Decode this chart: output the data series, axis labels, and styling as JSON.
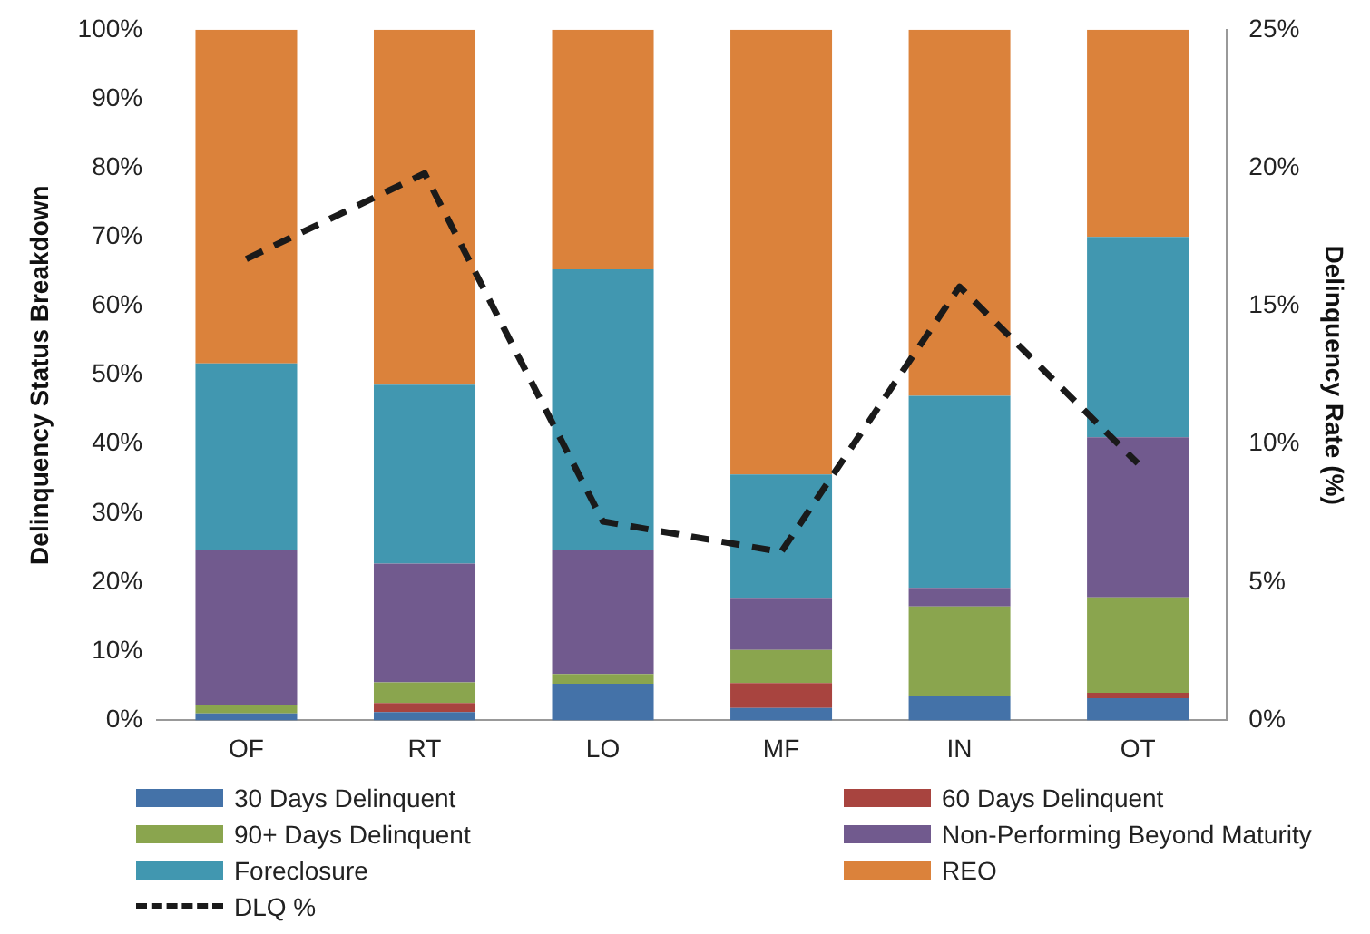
{
  "chart_data": {
    "type": "bar",
    "stacked": true,
    "ylabel": "Delinquency Status Breakdown",
    "y2label": "Delinquency Rate (%)",
    "categories": [
      "OF",
      "RT",
      "LO",
      "MF",
      "IN",
      "OT"
    ],
    "series": [
      {
        "name": "30 Days Delinquent",
        "color": "#4472a8",
        "values": [
          1.0,
          1.2,
          5.3,
          1.8,
          3.6,
          3.2
        ]
      },
      {
        "name": "60 Days Delinquent",
        "color": "#a8443f",
        "values": [
          0,
          1.3,
          0,
          3.6,
          0,
          0.8
        ]
      },
      {
        "name": "90+ Days Delinquent",
        "color": "#8aa54e",
        "values": [
          1.2,
          3.0,
          1.4,
          4.8,
          12.9,
          13.8
        ]
      },
      {
        "name": "Non-Performing Beyond Maturity",
        "color": "#715a8e",
        "values": [
          22.5,
          17.2,
          18.0,
          7.4,
          2.7,
          23.2
        ]
      },
      {
        "name": "Foreclosure",
        "color": "#4197b0",
        "values": [
          27.0,
          25.9,
          40.6,
          18.0,
          27.8,
          29.0
        ]
      },
      {
        "name": "REO",
        "color": "#db823b",
        "values": [
          48.3,
          51.4,
          34.7,
          64.4,
          53.0,
          30.0
        ]
      },
      {
        "name": "DLQ %",
        "type": "line",
        "axis": "y2",
        "color": "#1a1a1a",
        "line_style": "dashed",
        "marker": "none",
        "values": [
          16.7,
          19.8,
          7.2,
          6.1,
          15.7,
          9.3
        ]
      }
    ],
    "ylim": [
      0,
      100
    ],
    "yticks": [
      {
        "value": 0,
        "label": "0%"
      },
      {
        "value": 10,
        "label": "10%"
      },
      {
        "value": 20,
        "label": "20%"
      },
      {
        "value": 30,
        "label": "30%"
      },
      {
        "value": 40,
        "label": "40%"
      },
      {
        "value": 50,
        "label": "50%"
      },
      {
        "value": 60,
        "label": "60%"
      },
      {
        "value": 70,
        "label": "70%"
      },
      {
        "value": 80,
        "label": "80%"
      },
      {
        "value": 90,
        "label": "90%"
      },
      {
        "value": 100,
        "label": "100%"
      }
    ],
    "y2lim": [
      0,
      25
    ],
    "y2ticks": [
      {
        "value": 0,
        "label": "0%"
      },
      {
        "value": 5,
        "label": "5%"
      },
      {
        "value": 10,
        "label": "10%"
      },
      {
        "value": 15,
        "label": "15%"
      },
      {
        "value": 20,
        "label": "20%"
      },
      {
        "value": 25,
        "label": "25%"
      }
    ],
    "grid": false,
    "legend": "bottom"
  }
}
